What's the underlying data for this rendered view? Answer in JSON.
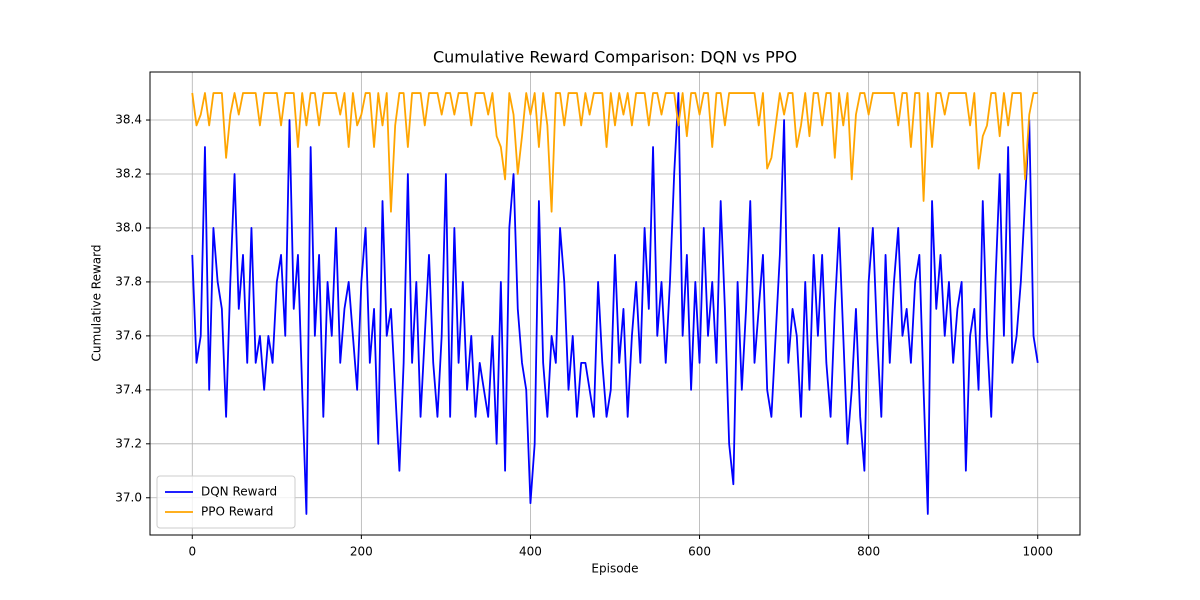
{
  "chart_data": {
    "type": "line",
    "title": "Cumulative Reward Comparison: DQN vs PPO",
    "x_label": "Episode",
    "y_label": "Cumulative Reward",
    "x": [
      0,
      5,
      10,
      15,
      20,
      25,
      30,
      35,
      40,
      45,
      50,
      55,
      60,
      65,
      70,
      75,
      80,
      85,
      90,
      95,
      100,
      105,
      110,
      115,
      120,
      125,
      130,
      135,
      140,
      145,
      150,
      155,
      160,
      165,
      170,
      175,
      180,
      185,
      190,
      195,
      200,
      205,
      210,
      215,
      220,
      225,
      230,
      235,
      240,
      245,
      250,
      255,
      260,
      265,
      270,
      275,
      280,
      285,
      290,
      295,
      300,
      305,
      310,
      315,
      320,
      325,
      330,
      335,
      340,
      345,
      350,
      355,
      360,
      365,
      370,
      375,
      380,
      385,
      390,
      395,
      400,
      405,
      410,
      415,
      420,
      425,
      430,
      435,
      440,
      445,
      450,
      455,
      460,
      465,
      470,
      475,
      480,
      485,
      490,
      495,
      500,
      505,
      510,
      515,
      520,
      525,
      530,
      535,
      540,
      545,
      550,
      555,
      560,
      565,
      570,
      575,
      580,
      585,
      590,
      595,
      600,
      605,
      610,
      615,
      620,
      625,
      630,
      635,
      640,
      645,
      650,
      655,
      660,
      665,
      670,
      675,
      680,
      685,
      690,
      695,
      700,
      705,
      710,
      715,
      720,
      725,
      730,
      735,
      740,
      745,
      750,
      755,
      760,
      765,
      770,
      775,
      780,
      785,
      790,
      795,
      800,
      805,
      810,
      815,
      820,
      825,
      830,
      835,
      840,
      845,
      850,
      855,
      860,
      865,
      870,
      875,
      880,
      885,
      890,
      895,
      900,
      905,
      910,
      915,
      920,
      925,
      930,
      935,
      940,
      945,
      950,
      955,
      960,
      965,
      970,
      975,
      980,
      985,
      990,
      995,
      1000
    ],
    "series": [
      {
        "name": "DQN Reward",
        "color": "#0000ff",
        "values": [
          37.9,
          37.5,
          37.6,
          38.3,
          37.4,
          38.0,
          37.8,
          37.7,
          37.3,
          37.8,
          38.2,
          37.7,
          37.9,
          37.5,
          38.0,
          37.5,
          37.6,
          37.4,
          37.6,
          37.5,
          37.8,
          37.9,
          37.6,
          38.4,
          37.7,
          37.9,
          37.4,
          36.94,
          38.3,
          37.6,
          37.9,
          37.3,
          37.8,
          37.6,
          38.0,
          37.5,
          37.7,
          37.8,
          37.6,
          37.4,
          37.8,
          38.0,
          37.5,
          37.7,
          37.2,
          38.1,
          37.6,
          37.7,
          37.4,
          37.1,
          37.5,
          38.2,
          37.5,
          37.8,
          37.3,
          37.6,
          37.9,
          37.5,
          37.3,
          37.6,
          38.2,
          37.3,
          38.0,
          37.5,
          37.8,
          37.4,
          37.6,
          37.3,
          37.5,
          37.4,
          37.3,
          37.6,
          37.2,
          37.8,
          37.1,
          38.0,
          38.2,
          37.7,
          37.5,
          37.4,
          36.98,
          37.2,
          38.1,
          37.5,
          37.3,
          37.6,
          37.5,
          38.0,
          37.8,
          37.4,
          37.6,
          37.3,
          37.5,
          37.5,
          37.4,
          37.3,
          37.8,
          37.5,
          37.3,
          37.4,
          37.9,
          37.5,
          37.7,
          37.3,
          37.6,
          37.8,
          37.5,
          38.0,
          37.7,
          38.3,
          37.6,
          37.8,
          37.5,
          37.8,
          38.2,
          38.5,
          37.6,
          37.9,
          37.4,
          37.8,
          37.5,
          38.0,
          37.6,
          37.8,
          37.5,
          38.1,
          37.7,
          37.2,
          37.05,
          37.8,
          37.4,
          37.7,
          38.1,
          37.5,
          37.7,
          37.9,
          37.4,
          37.3,
          37.6,
          37.9,
          38.4,
          37.5,
          37.7,
          37.6,
          37.3,
          37.8,
          37.4,
          37.9,
          37.6,
          37.9,
          37.5,
          37.3,
          37.7,
          38.0,
          37.6,
          37.2,
          37.4,
          37.7,
          37.3,
          37.1,
          37.8,
          38.0,
          37.6,
          37.3,
          37.9,
          37.5,
          37.8,
          38.0,
          37.6,
          37.7,
          37.5,
          37.8,
          37.9,
          37.4,
          36.94,
          38.1,
          37.7,
          37.9,
          37.6,
          37.8,
          37.5,
          37.7,
          37.8,
          37.1,
          37.6,
          37.7,
          37.4,
          38.1,
          37.6,
          37.3,
          37.8,
          38.2,
          37.6,
          38.3,
          37.5,
          37.6,
          37.8,
          38.1,
          38.4,
          37.6,
          37.5
        ]
      },
      {
        "name": "PPO Reward",
        "color": "#ffa500",
        "values": [
          38.5,
          38.38,
          38.42,
          38.5,
          38.38,
          38.5,
          38.5,
          38.5,
          38.26,
          38.42,
          38.5,
          38.42,
          38.5,
          38.5,
          38.5,
          38.5,
          38.38,
          38.5,
          38.5,
          38.5,
          38.5,
          38.38,
          38.5,
          38.5,
          38.5,
          38.3,
          38.5,
          38.38,
          38.5,
          38.5,
          38.38,
          38.5,
          38.5,
          38.5,
          38.5,
          38.42,
          38.5,
          38.3,
          38.5,
          38.38,
          38.42,
          38.5,
          38.5,
          38.3,
          38.5,
          38.38,
          38.5,
          38.06,
          38.38,
          38.5,
          38.5,
          38.3,
          38.5,
          38.5,
          38.5,
          38.38,
          38.5,
          38.5,
          38.5,
          38.42,
          38.5,
          38.5,
          38.42,
          38.5,
          38.5,
          38.5,
          38.38,
          38.5,
          38.5,
          38.5,
          38.42,
          38.5,
          38.34,
          38.3,
          38.18,
          38.5,
          38.42,
          38.2,
          38.34,
          38.5,
          38.42,
          38.5,
          38.3,
          38.5,
          38.38,
          38.06,
          38.5,
          38.5,
          38.38,
          38.5,
          38.5,
          38.5,
          38.38,
          38.5,
          38.42,
          38.5,
          38.5,
          38.5,
          38.3,
          38.5,
          38.38,
          38.5,
          38.42,
          38.5,
          38.38,
          38.5,
          38.5,
          38.5,
          38.38,
          38.5,
          38.5,
          38.42,
          38.5,
          38.5,
          38.5,
          38.38,
          38.5,
          38.34,
          38.5,
          38.5,
          38.42,
          38.5,
          38.5,
          38.3,
          38.5,
          38.5,
          38.38,
          38.5,
          38.5,
          38.5,
          38.5,
          38.5,
          38.5,
          38.5,
          38.38,
          38.5,
          38.22,
          38.26,
          38.38,
          38.5,
          38.42,
          38.5,
          38.5,
          38.3,
          38.38,
          38.5,
          38.34,
          38.5,
          38.5,
          38.38,
          38.5,
          38.5,
          38.26,
          38.5,
          38.38,
          38.5,
          38.18,
          38.42,
          38.5,
          38.5,
          38.42,
          38.5,
          38.5,
          38.5,
          38.5,
          38.5,
          38.5,
          38.38,
          38.5,
          38.5,
          38.3,
          38.5,
          38.5,
          38.1,
          38.5,
          38.3,
          38.5,
          38.5,
          38.42,
          38.5,
          38.5,
          38.5,
          38.5,
          38.5,
          38.38,
          38.5,
          38.22,
          38.34,
          38.38,
          38.5,
          38.5,
          38.34,
          38.5,
          38.38,
          38.5,
          38.5,
          38.5,
          38.18,
          38.42,
          38.5,
          38.5
        ]
      }
    ],
    "xlim": [
      -50,
      1050
    ],
    "xticks": [
      0,
      200,
      400,
      600,
      800,
      1000
    ],
    "ylim": [
      36.862,
      38.578
    ],
    "yticks": [
      {
        "value": 37,
        "label": "37.0"
      },
      37.2,
      37.4,
      37.6,
      37.8,
      {
        "value": 38,
        "label": "38.0"
      },
      38.2,
      38.4
    ],
    "grid": true,
    "legend": "lower left"
  }
}
